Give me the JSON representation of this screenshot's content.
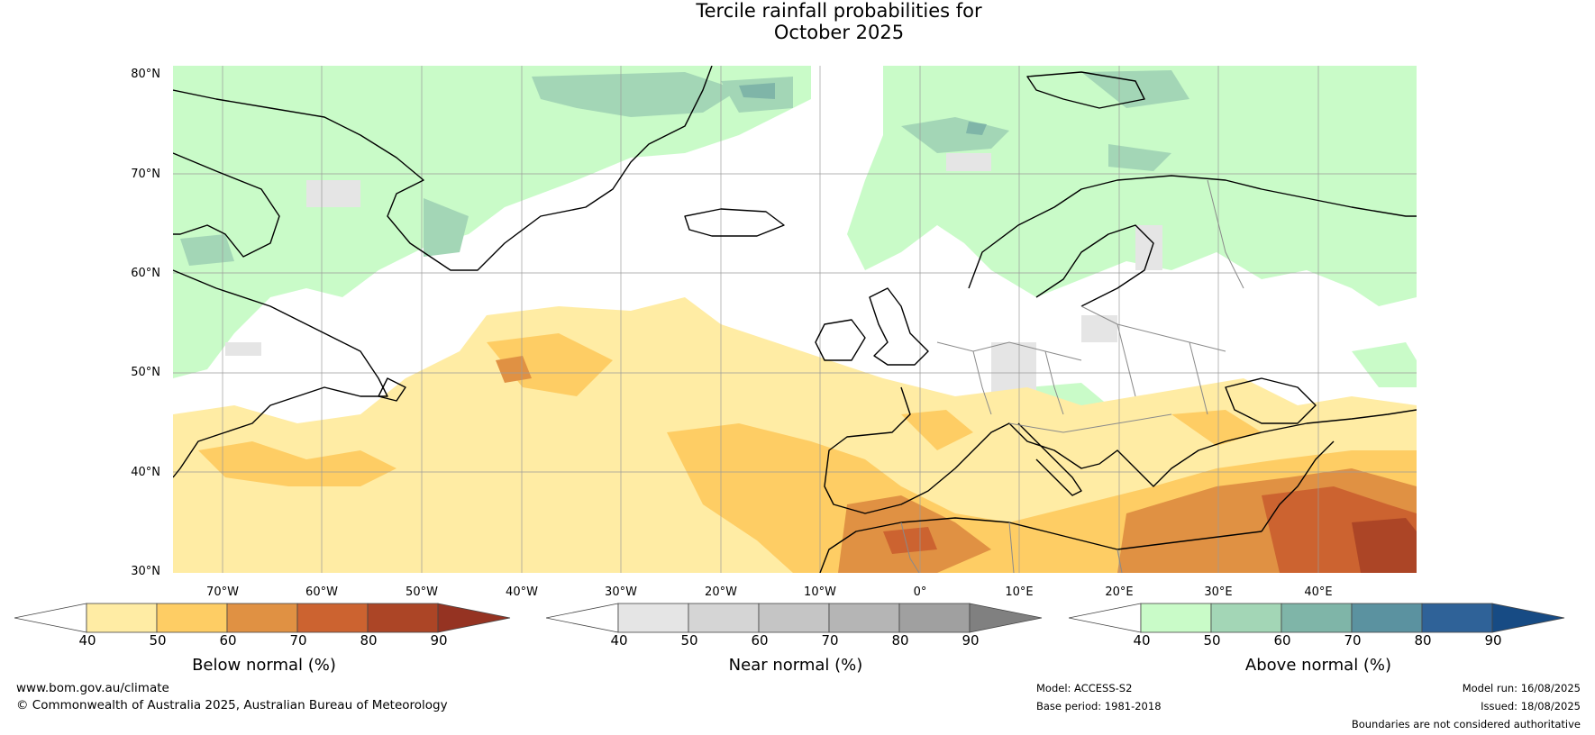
{
  "title": {
    "line1": "Tercile rainfall probabilities for",
    "line2": "October 2025"
  },
  "map": {
    "lat_labels": [
      "80°N",
      "70°N",
      "60°N",
      "50°N",
      "40°N",
      "30°N"
    ],
    "lon_labels": [
      "70°W",
      "60°W",
      "50°W",
      "40°W",
      "30°W",
      "20°W",
      "10°W",
      "0°",
      "10°E",
      "20°E",
      "30°E",
      "40°E"
    ],
    "land_outline_color": "#000000",
    "border_color": "#808080"
  },
  "colorbars": [
    {
      "title": "Below normal (%)",
      "ticks": [
        "40",
        "50",
        "60",
        "70",
        "80",
        "90"
      ],
      "colors": [
        "#ffffff",
        "#ffeca4",
        "#fecd64",
        "#e09143",
        "#cc6330",
        "#ac4526",
        "#953322"
      ]
    },
    {
      "title": "Near normal (%)",
      "ticks": [
        "40",
        "50",
        "60",
        "70",
        "80",
        "90"
      ],
      "colors": [
        "#ffffff",
        "#e5e5e5",
        "#d5d5d5",
        "#c5c5c5",
        "#b5b5b5",
        "#a0a0a0",
        "#808080"
      ]
    },
    {
      "title": "Above normal (%)",
      "ticks": [
        "40",
        "50",
        "60",
        "70",
        "80",
        "90"
      ],
      "colors": [
        "#ffffff",
        "#c9fbc8",
        "#a3d6b6",
        "#7fb5a8",
        "#5b92a0",
        "#2f6298",
        "#174b84"
      ]
    }
  ],
  "footer": {
    "website": "www.bom.gov.au/climate",
    "copyright": "© Commonwealth of Australia 2025, Australian Bureau of Meteorology",
    "model": "Model: ACCESS-S2",
    "base_period": "Base period: 1981-2018",
    "model_run": "Model run: 16/08/2025",
    "issued": "Issued: 18/08/2025",
    "disclaimer": "Boundaries are not considered authoritative"
  }
}
